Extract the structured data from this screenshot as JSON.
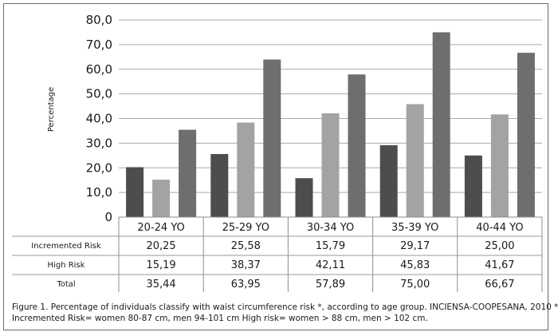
{
  "chart_data": {
    "type": "bar",
    "ylabel": "Percentage",
    "ylim": [
      0,
      80
    ],
    "y_ticks": [
      "0",
      "10,0",
      "20,0",
      "30,0",
      "40,0",
      "50,0",
      "60,0",
      "70,0",
      "80,0"
    ],
    "categories": [
      "20-24 YO",
      "25-29 YO",
      "30-34 YO",
      "35-39 YO",
      "40-44 YO"
    ],
    "series": [
      {
        "name": "Incremented Risk",
        "color": "#4d4d4d",
        "values": [
          20.25,
          25.58,
          15.79,
          29.17,
          25.0
        ],
        "labels": [
          "20,25",
          "25,58",
          "15,79",
          "29,17",
          "25,00"
        ]
      },
      {
        "name": "High Risk",
        "color": "#a3a3a3",
        "values": [
          15.19,
          38.37,
          42.11,
          45.83,
          41.67
        ],
        "labels": [
          "15,19",
          "38,37",
          "42,11",
          "45,83",
          "41,67"
        ]
      },
      {
        "name": "Total",
        "color": "#6e6e6e",
        "values": [
          35.44,
          63.95,
          57.89,
          75.0,
          66.67
        ],
        "labels": [
          "35,44",
          "63,95",
          "57,89",
          "75,00",
          "66,67"
        ]
      }
    ],
    "grid": true,
    "legend": "data table below chart"
  },
  "caption": {
    "line1": "Figure 1. Percentage of individuals classify with waist circumference risk *, according to age group. INCIENSA-COOPESANA, 2010 *",
    "line2": "Incremented Risk= women 80-87 cm, men 94-101 cm High risk=  women > 88 cm, men > 102 cm."
  }
}
